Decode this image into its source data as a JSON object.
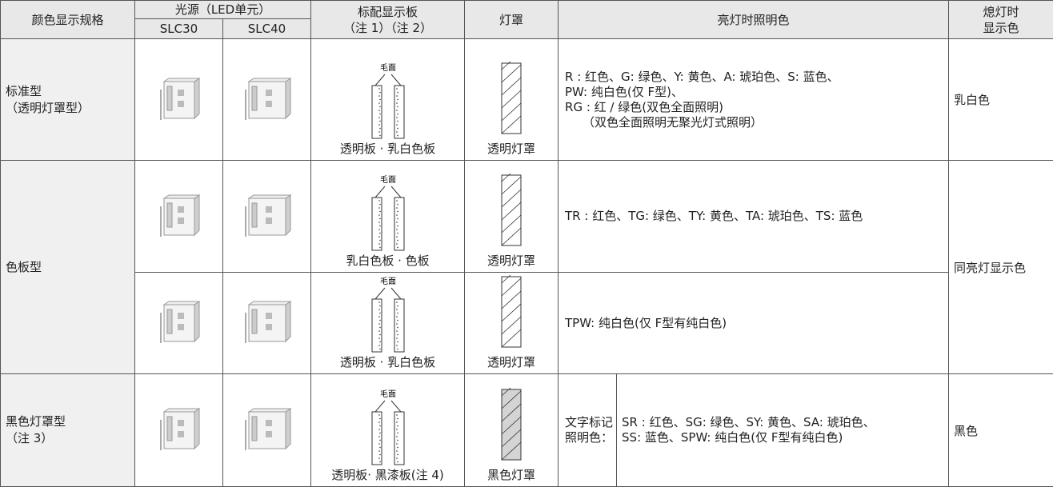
{
  "header": {
    "spec": "颜色显示规格",
    "light_source": "光源（LED单元）",
    "slc30": "SLC30",
    "slc40": "SLC40",
    "panel": [
      "标配显示板",
      "（注 1）（注 2）"
    ],
    "cover": "灯罩",
    "lit_color": "亮灯时照明色",
    "off_color": [
      "熄灯时",
      "显示色"
    ]
  },
  "matte_label": "毛面",
  "groups": [
    {
      "spec": [
        "标准型",
        "（透明灯罩型）"
      ],
      "off_color": "乳白色",
      "rows": [
        {
          "panel": "透明板 · 乳白色板",
          "cover": "透明灯罩",
          "cover_color": "#ffffff",
          "lit_color": [
            "R : 红色、G: 绿色、Y: 黄色、A: 琥珀色、S: 蓝色、",
            "PW: 纯白色(仅 F型)、",
            "RG : 红 / 绿色(双色全面照明)",
            "（双色全面照明无聚光灯式照明）"
          ]
        }
      ]
    },
    {
      "spec": [
        "色板型"
      ],
      "off_color": "同亮灯显示色",
      "rows": [
        {
          "panel": "乳白色板 · 色板",
          "cover": "透明灯罩",
          "cover_color": "#ffffff",
          "lit_color": [
            "TR : 红色、TG: 绿色、TY: 黄色、TA: 琥珀色、TS: 蓝色"
          ]
        },
        {
          "panel": "透明板 · 乳白色板",
          "cover": "透明灯罩",
          "cover_color": "#ffffff",
          "lit_color": [
            "TPW: 纯白色(仅 F型有纯白色)"
          ]
        }
      ]
    },
    {
      "spec": [
        "黑色灯罩型",
        "（注 3）"
      ],
      "off_color": "黑色",
      "rows": [
        {
          "panel": "透明板· 黑漆板(注 4)",
          "cover": "黑色灯罩",
          "cover_color": "#d4d4d4",
          "lit_label": [
            "文字标记",
            "照明色："
          ],
          "lit_color": [
            "SR : 红色、SG: 绿色、SY: 黄色、SA: 琥珀色、",
            "SS: 蓝色、SPW: 纯白色(仅 F型有纯白色)"
          ]
        }
      ]
    }
  ]
}
